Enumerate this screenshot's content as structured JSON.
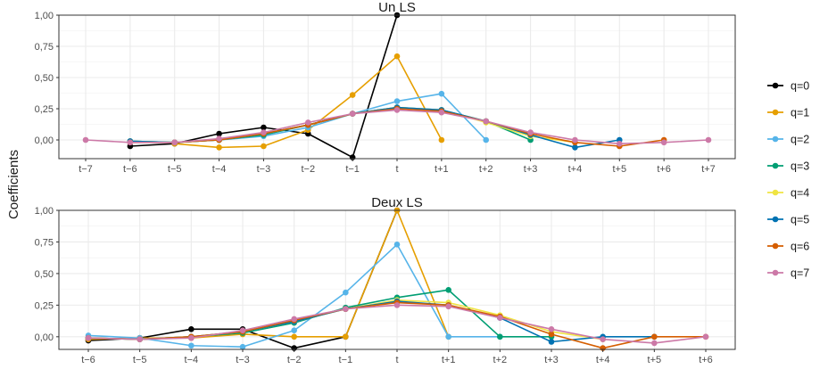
{
  "chart_data": {
    "type": "line",
    "ylabel": "Coefficients",
    "legend_position": "right",
    "legend": [
      {
        "name": "q=0",
        "color": "#000000"
      },
      {
        "name": "q=1",
        "color": "#E69F00"
      },
      {
        "name": "q=2",
        "color": "#56B4E9"
      },
      {
        "name": "q=3",
        "color": "#009E73"
      },
      {
        "name": "q=4",
        "color": "#F0E442"
      },
      {
        "name": "q=5",
        "color": "#0072B2"
      },
      {
        "name": "q=6",
        "color": "#D55E00"
      },
      {
        "name": "q=7",
        "color": "#CC79A7"
      }
    ],
    "panels": [
      {
        "title": "Un LS",
        "categories": [
          "t−7",
          "t−6",
          "t−5",
          "t−4",
          "t−3",
          "t−2",
          "t−1",
          "t",
          "t+1",
          "t+2",
          "t+3",
          "t+4",
          "t+5",
          "t+6",
          "t+7"
        ],
        "ylim": [
          -0.15,
          1.0
        ],
        "yticks": [
          0.0,
          0.25,
          0.5,
          0.75,
          1.0
        ],
        "ytick_labels": [
          "0,00",
          "0,25",
          "0,50",
          "0,75",
          "1,00"
        ],
        "series": [
          {
            "name": "q=0",
            "x": [
              1,
              2,
              3,
              4,
              5,
              6,
              7
            ],
            "values": [
              -0.05,
              -0.03,
              0.05,
              0.1,
              0.05,
              -0.14,
              1.0
            ]
          },
          {
            "name": "q=1",
            "x": [
              2,
              3,
              4,
              5,
              6,
              7,
              8
            ],
            "values": [
              -0.03,
              -0.06,
              -0.05,
              0.08,
              0.36,
              0.67,
              0.0
            ]
          },
          {
            "name": "q=2",
            "x": [
              1,
              2,
              3,
              4,
              5,
              6,
              7,
              8,
              9
            ],
            "values": [
              -0.01,
              -0.02,
              0.0,
              0.03,
              0.1,
              0.21,
              0.31,
              0.37,
              0.0
            ]
          },
          {
            "name": "q=3",
            "x": [
              1,
              2,
              3,
              4,
              5,
              6,
              7,
              8,
              9,
              10
            ],
            "values": [
              -0.01,
              -0.02,
              0.0,
              0.04,
              0.12,
              0.21,
              0.26,
              0.24,
              0.15,
              0.0
            ]
          },
          {
            "name": "q=4",
            "x": [
              1,
              2,
              3,
              4,
              5,
              6,
              7,
              8,
              9,
              10,
              11
            ],
            "values": [
              -0.01,
              -0.02,
              0.0,
              0.05,
              0.12,
              0.21,
              0.26,
              0.24,
              0.14,
              0.03,
              -0.02
            ]
          },
          {
            "name": "q=5",
            "x": [
              1,
              2,
              3,
              4,
              5,
              6,
              7,
              8,
              9,
              10,
              11,
              12
            ],
            "values": [
              -0.01,
              -0.02,
              0.0,
              0.05,
              0.12,
              0.21,
              0.26,
              0.24,
              0.15,
              0.04,
              -0.06,
              0.0
            ]
          },
          {
            "name": "q=6",
            "x": [
              1,
              2,
              3,
              4,
              5,
              6,
              7,
              8,
              9,
              10,
              11,
              12,
              13
            ],
            "values": [
              -0.02,
              -0.02,
              0.0,
              0.05,
              0.12,
              0.21,
              0.25,
              0.23,
              0.15,
              0.05,
              -0.02,
              -0.05,
              0.0
            ]
          },
          {
            "name": "q=7",
            "x": [
              0,
              1,
              2,
              3,
              4,
              5,
              6,
              7,
              8,
              9,
              10,
              11,
              12,
              13,
              14
            ],
            "values": [
              0.0,
              -0.02,
              -0.02,
              0.01,
              0.06,
              0.14,
              0.21,
              0.24,
              0.22,
              0.15,
              0.06,
              0.0,
              -0.03,
              -0.02,
              0.0
            ]
          }
        ]
      },
      {
        "title": "Deux LS",
        "categories": [
          "t−6",
          "t−5",
          "t−4",
          "t−3",
          "t−2",
          "t−1",
          "t",
          "t+1",
          "t+2",
          "t+3",
          "t+4",
          "t+5",
          "t+6"
        ],
        "ylim": [
          -0.1,
          1.0
        ],
        "yticks": [
          0.0,
          0.25,
          0.5,
          0.75,
          1.0
        ],
        "ytick_labels": [
          "0,00",
          "0,25",
          "0,50",
          "0,75",
          "1,00"
        ],
        "series": [
          {
            "name": "q=0",
            "x": [
              0,
              1,
              2,
              3,
              4,
              5,
              6
            ],
            "values": [
              -0.03,
              -0.01,
              0.06,
              0.06,
              -0.09,
              0.0,
              1.0
            ]
          },
          {
            "name": "q=1",
            "x": [
              0,
              1,
              2,
              3,
              4,
              5,
              6,
              7
            ],
            "values": [
              -0.02,
              -0.01,
              -0.01,
              0.02,
              0.0,
              0.0,
              1.0,
              0.0
            ]
          },
          {
            "name": "q=2",
            "x": [
              0,
              1,
              2,
              3,
              4,
              5,
              6,
              7,
              8
            ],
            "values": [
              0.01,
              -0.01,
              -0.07,
              -0.08,
              0.05,
              0.35,
              0.73,
              0.0,
              0.0
            ]
          },
          {
            "name": "q=3",
            "x": [
              0,
              1,
              2,
              3,
              4,
              5,
              6,
              7,
              8,
              9
            ],
            "values": [
              -0.01,
              -0.02,
              0.0,
              0.03,
              0.11,
              0.23,
              0.31,
              0.37,
              0.0,
              0.0
            ]
          },
          {
            "name": "q=4",
            "x": [
              0,
              1,
              2,
              3,
              4,
              5,
              6,
              7,
              8,
              9,
              10
            ],
            "values": [
              -0.01,
              -0.02,
              0.0,
              0.04,
              0.12,
              0.22,
              0.29,
              0.27,
              0.17,
              0.04,
              -0.02
            ]
          },
          {
            "name": "q=5",
            "x": [
              0,
              1,
              2,
              3,
              4,
              5,
              6,
              7,
              8,
              9,
              10,
              11
            ],
            "values": [
              -0.01,
              -0.02,
              0.0,
              0.04,
              0.12,
              0.22,
              0.28,
              0.25,
              0.15,
              -0.04,
              0.0,
              0.0
            ]
          },
          {
            "name": "q=6",
            "x": [
              0,
              1,
              2,
              3,
              4,
              5,
              6,
              7,
              8,
              9,
              10,
              11,
              12
            ],
            "values": [
              -0.01,
              -0.02,
              0.0,
              0.04,
              0.13,
              0.22,
              0.27,
              0.25,
              0.16,
              0.02,
              -0.09,
              0.0,
              0.0
            ]
          },
          {
            "name": "q=7",
            "x": [
              0,
              1,
              2,
              3,
              4,
              5,
              6,
              7,
              8,
              9,
              10,
              11,
              12
            ],
            "values": [
              -0.01,
              -0.02,
              -0.01,
              0.05,
              0.14,
              0.22,
              0.25,
              0.24,
              0.15,
              0.06,
              -0.02,
              -0.05,
              0.0
            ]
          }
        ]
      }
    ]
  }
}
